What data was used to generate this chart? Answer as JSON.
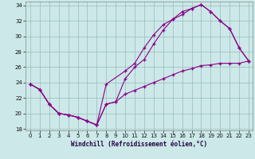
{
  "bg_color": "#cce8e8",
  "grid_color": "#99bbbb",
  "line_color": "#880088",
  "xlabel": "Windchill (Refroidissement éolien,°C)",
  "xlim_min": -0.5,
  "xlim_max": 23.4,
  "ylim_min": 17.8,
  "ylim_max": 34.5,
  "xticks": [
    0,
    1,
    2,
    3,
    4,
    5,
    6,
    7,
    8,
    9,
    10,
    11,
    12,
    13,
    14,
    15,
    16,
    17,
    18,
    19,
    20,
    21,
    22,
    23
  ],
  "yticks": [
    18,
    20,
    22,
    24,
    26,
    28,
    30,
    32,
    34
  ],
  "line1_x": [
    0,
    1,
    2,
    3,
    4,
    5,
    6,
    7,
    8,
    10,
    11,
    12,
    13,
    14,
    15,
    16,
    17,
    18,
    19,
    20,
    21,
    22,
    23
  ],
  "line1_y": [
    23.8,
    23.1,
    21.2,
    20.0,
    19.8,
    19.5,
    19.0,
    18.5,
    23.8,
    25.5,
    26.5,
    28.5,
    30.2,
    31.5,
    32.2,
    32.8,
    33.6,
    34.1,
    33.2,
    32.0,
    31.0,
    28.5,
    26.8
  ],
  "line2_x": [
    0,
    1,
    2,
    3,
    4,
    5,
    6,
    7,
    8,
    9,
    10,
    11,
    12,
    13,
    14,
    15,
    16,
    17,
    18,
    19,
    20,
    21,
    22,
    23
  ],
  "line2_y": [
    23.8,
    23.1,
    21.2,
    20.0,
    19.8,
    19.5,
    19.0,
    18.5,
    21.2,
    21.5,
    24.5,
    26.0,
    27.0,
    29.0,
    30.8,
    32.2,
    33.2,
    33.6,
    34.1,
    33.2,
    32.0,
    31.0,
    28.5,
    26.8
  ],
  "line3_x": [
    0,
    1,
    2,
    3,
    4,
    5,
    6,
    7,
    8,
    9,
    10,
    11,
    12,
    13,
    14,
    15,
    16,
    17,
    18,
    19,
    20,
    21,
    22,
    23
  ],
  "line3_y": [
    23.8,
    23.1,
    21.2,
    20.0,
    19.8,
    19.5,
    19.0,
    18.5,
    21.2,
    21.5,
    22.5,
    23.0,
    23.5,
    24.0,
    24.5,
    25.0,
    25.5,
    25.8,
    26.2,
    26.3,
    26.5,
    26.5,
    26.5,
    26.8
  ]
}
